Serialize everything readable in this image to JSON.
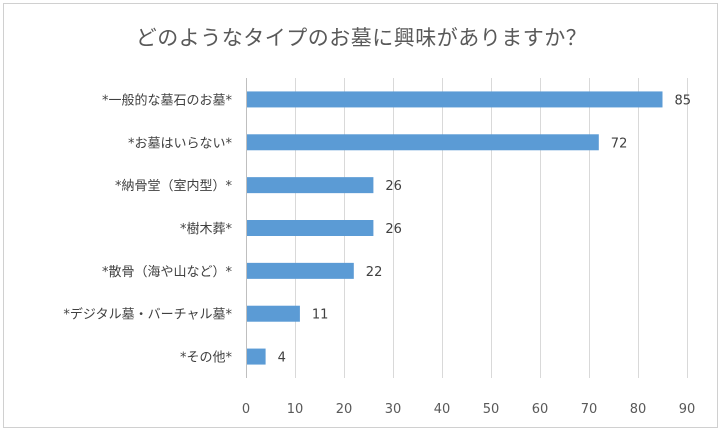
{
  "chart_data": {
    "type": "bar",
    "orientation": "horizontal",
    "title": "どのようなタイプのお墓に興味がありますか？",
    "categories": [
      "*一般的な墓石のお墓*",
      "*お墓はいらない*",
      "*納骨堂（室内型）*",
      "*樹木葬*",
      "*散骨（海や山など）*",
      "*デジタル墓・バーチャル墓*",
      "*その他*"
    ],
    "values": [
      85,
      72,
      26,
      26,
      22,
      11,
      4
    ],
    "xlim": [
      0,
      90
    ],
    "xticks": [
      0,
      10,
      20,
      30,
      40,
      50,
      60,
      70,
      80,
      90
    ],
    "xlabel": "",
    "ylabel": "",
    "grid": true,
    "bar_color": "#5b9bd5",
    "grid_color": "#d9d9d9"
  }
}
